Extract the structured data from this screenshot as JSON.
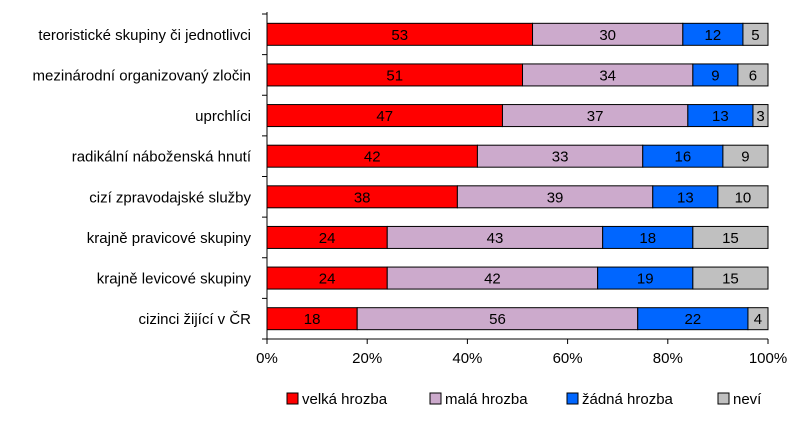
{
  "chart_data": {
    "type": "bar",
    "orientation": "horizontal",
    "stacked": "percent",
    "categories": [
      "teroristické skupiny či jednotlivci",
      "mezinárodní organizovaný zločin",
      "uprchlíci",
      "radikální náboženská hnutí",
      "cizí zpravodajské služby",
      "krajně pravicové skupiny",
      "krajně levicové skupiny",
      "cizinci žijící v ČR"
    ],
    "series": [
      {
        "name": "velká hrozba",
        "color": "#ff0000",
        "values": [
          53,
          51,
          47,
          42,
          38,
          24,
          24,
          18
        ]
      },
      {
        "name": "malá hrozba",
        "color": "#ccaacc",
        "values": [
          30,
          34,
          37,
          33,
          39,
          43,
          42,
          56
        ]
      },
      {
        "name": "žádná hrozba",
        "color": "#0066ff",
        "values": [
          12,
          9,
          13,
          16,
          13,
          18,
          19,
          22
        ]
      },
      {
        "name": "neví",
        "color": "#c0c0c0",
        "values": [
          5,
          6,
          3,
          9,
          10,
          15,
          15,
          4
        ]
      }
    ],
    "xlim": [
      0,
      100
    ],
    "x_ticks": [
      "0%",
      "20%",
      "40%",
      "60%",
      "80%",
      "100%"
    ],
    "grid": false,
    "legend_position": "bottom",
    "data_labels": true
  }
}
